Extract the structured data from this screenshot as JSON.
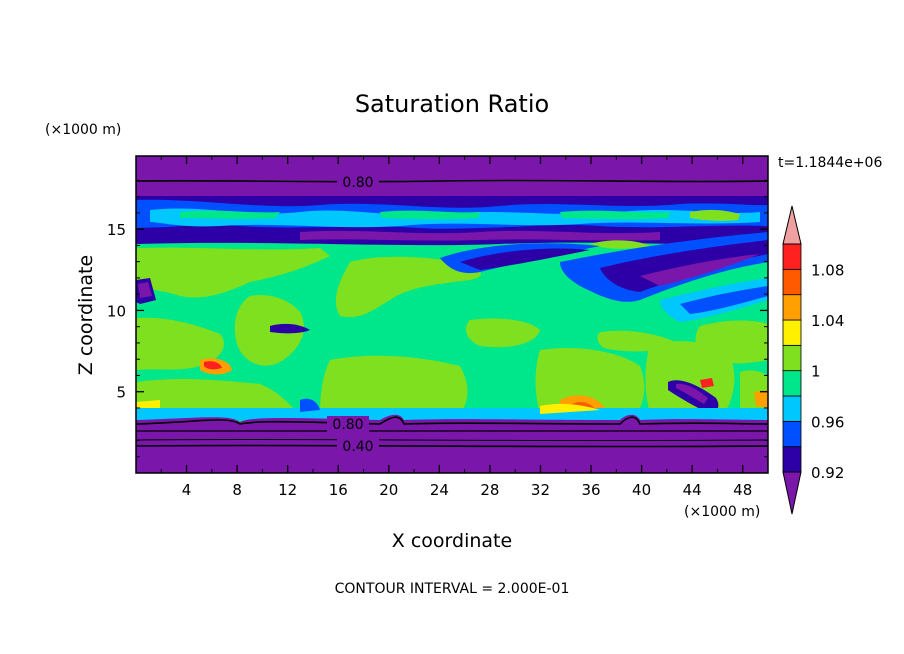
{
  "chart_data": {
    "type": "heatmap",
    "title": "Saturation Ratio",
    "xlabel": "X coordinate",
    "ylabel": "Z coordinate",
    "x_unit": "(×1000 m)",
    "y_unit": "(×1000 m)",
    "time_label": "t=1.1844e+06",
    "footer": "CONTOUR INTERVAL = 2.000E-01",
    "xlim": [
      0,
      50
    ],
    "ylim": [
      0,
      19.5
    ],
    "x_ticks": [
      "4",
      "8",
      "12",
      "16",
      "20",
      "24",
      "28",
      "32",
      "36",
      "40",
      "44",
      "48"
    ],
    "y_ticks": [
      "5",
      "10",
      "15"
    ],
    "contour_labels": [
      "0.80",
      "0.80",
      "0.40"
    ],
    "colorbar": {
      "levels": [
        0.92,
        0.94,
        0.96,
        0.98,
        1.0,
        1.02,
        1.04,
        1.06,
        1.08,
        1.1
      ],
      "tick_labels": [
        "0.92",
        "0.96",
        "1",
        "1.04",
        "1.08"
      ],
      "colors": [
        "#7a16aa",
        "#2c00a6",
        "#0050ff",
        "#00c8ff",
        "#00e68a",
        "#7fe020",
        "#fff000",
        "#ffa000",
        "#ff5a00",
        "#ff2020",
        "#f0a0a0"
      ]
    }
  }
}
